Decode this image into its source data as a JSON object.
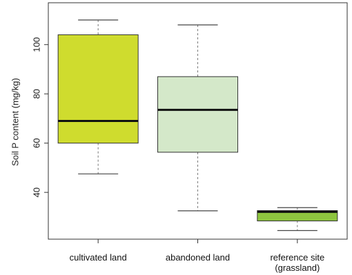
{
  "chart_data": {
    "type": "box",
    "ylabel": "Soil P content (mg/kg)",
    "ylim": [
      21,
      117
    ],
    "yticks": [
      40,
      60,
      80,
      100
    ],
    "categories": [
      {
        "label": [
          "cultivated land"
        ],
        "min": 47.5,
        "q1": 60,
        "median": 69,
        "q3": 104,
        "max": 110,
        "color": "#cfdc2e"
      },
      {
        "label": [
          "abandoned land"
        ],
        "min": 32.5,
        "q1": 56.3,
        "median": 73.5,
        "q3": 87,
        "max": 108,
        "color": "#d4e8c9"
      },
      {
        "label": [
          "reference site",
          "(grassland)"
        ],
        "min": 24.5,
        "q1": 28.4,
        "median": 32.1,
        "q3": 32.6,
        "max": 33.8,
        "color": "#8ec53f"
      }
    ]
  }
}
